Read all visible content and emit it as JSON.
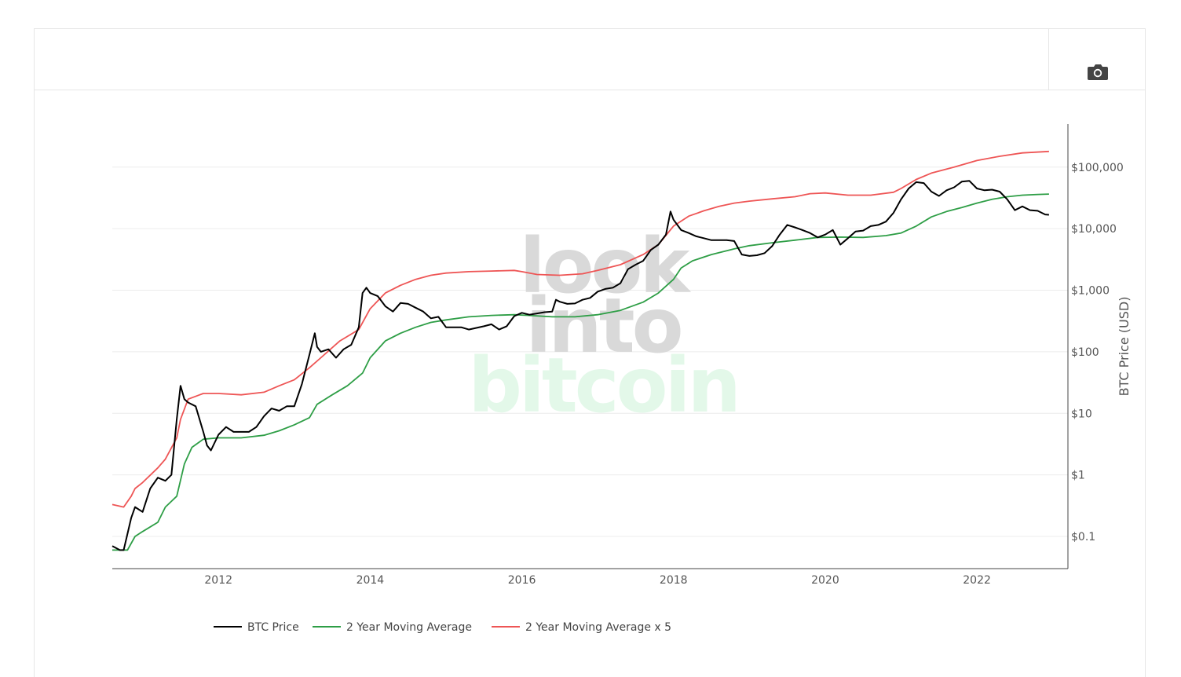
{
  "toolbar": {
    "camera_icon": "camera-icon"
  },
  "watermark": {
    "lines": [
      "look",
      "into",
      "bitcoin"
    ],
    "colors": [
      "#d9d9d9",
      "#d9d9d9",
      "#e3f8e9"
    ]
  },
  "chart_data": {
    "type": "line",
    "title": "",
    "xlabel": "",
    "ylabel": "BTC Price (USD)",
    "yscale": "log",
    "xlim": [
      2010.6,
      2023.2
    ],
    "ylim": [
      0.03,
      500000
    ],
    "grid": true,
    "legend_position": "bottom",
    "x_ticks": [
      2012,
      2014,
      2016,
      2018,
      2020,
      2022
    ],
    "x_tick_labels": [
      "2012",
      "2014",
      "2016",
      "2018",
      "2020",
      "2022"
    ],
    "y_ticks": [
      0.1,
      1,
      10,
      100,
      1000,
      10000,
      100000
    ],
    "y_tick_labels": [
      "$0.1",
      "$1",
      "$10",
      "$100",
      "$1,000",
      "$10,000",
      "$100,000"
    ],
    "series": [
      {
        "name": "BTC Price",
        "color": "#000000",
        "points": [
          [
            2010.6,
            0.07
          ],
          [
            2010.7,
            0.06
          ],
          [
            2010.75,
            0.06
          ],
          [
            2010.85,
            0.2
          ],
          [
            2010.9,
            0.3
          ],
          [
            2011.0,
            0.25
          ],
          [
            2011.1,
            0.6
          ],
          [
            2011.2,
            0.9
          ],
          [
            2011.3,
            0.8
          ],
          [
            2011.38,
            1.0
          ],
          [
            2011.45,
            8
          ],
          [
            2011.5,
            28
          ],
          [
            2011.55,
            17
          ],
          [
            2011.6,
            15
          ],
          [
            2011.7,
            13
          ],
          [
            2011.8,
            5
          ],
          [
            2011.85,
            3
          ],
          [
            2011.9,
            2.5
          ],
          [
            2012.0,
            4.5
          ],
          [
            2012.1,
            6
          ],
          [
            2012.2,
            5
          ],
          [
            2012.3,
            5
          ],
          [
            2012.4,
            5
          ],
          [
            2012.5,
            6
          ],
          [
            2012.6,
            9
          ],
          [
            2012.7,
            12
          ],
          [
            2012.8,
            11
          ],
          [
            2012.9,
            13
          ],
          [
            2013.0,
            13
          ],
          [
            2013.1,
            30
          ],
          [
            2013.2,
            90
          ],
          [
            2013.27,
            200
          ],
          [
            2013.3,
            120
          ],
          [
            2013.35,
            100
          ],
          [
            2013.45,
            110
          ],
          [
            2013.55,
            80
          ],
          [
            2013.65,
            110
          ],
          [
            2013.75,
            130
          ],
          [
            2013.85,
            250
          ],
          [
            2013.9,
            900
          ],
          [
            2013.95,
            1100
          ],
          [
            2014.0,
            900
          ],
          [
            2014.1,
            800
          ],
          [
            2014.2,
            550
          ],
          [
            2014.3,
            450
          ],
          [
            2014.4,
            620
          ],
          [
            2014.5,
            600
          ],
          [
            2014.6,
            520
          ],
          [
            2014.7,
            450
          ],
          [
            2014.8,
            350
          ],
          [
            2014.9,
            370
          ],
          [
            2015.0,
            250
          ],
          [
            2015.1,
            250
          ],
          [
            2015.2,
            250
          ],
          [
            2015.3,
            230
          ],
          [
            2015.5,
            260
          ],
          [
            2015.6,
            280
          ],
          [
            2015.7,
            230
          ],
          [
            2015.8,
            260
          ],
          [
            2015.9,
            380
          ],
          [
            2016.0,
            430
          ],
          [
            2016.1,
            400
          ],
          [
            2016.2,
            420
          ],
          [
            2016.3,
            440
          ],
          [
            2016.4,
            450
          ],
          [
            2016.45,
            700
          ],
          [
            2016.5,
            650
          ],
          [
            2016.6,
            600
          ],
          [
            2016.7,
            610
          ],
          [
            2016.8,
            700
          ],
          [
            2016.9,
            750
          ],
          [
            2017.0,
            950
          ],
          [
            2017.1,
            1050
          ],
          [
            2017.2,
            1100
          ],
          [
            2017.3,
            1300
          ],
          [
            2017.4,
            2200
          ],
          [
            2017.5,
            2600
          ],
          [
            2017.6,
            3000
          ],
          [
            2017.7,
            4500
          ],
          [
            2017.8,
            5500
          ],
          [
            2017.9,
            8000
          ],
          [
            2017.96,
            19000
          ],
          [
            2018.0,
            14000
          ],
          [
            2018.1,
            9500
          ],
          [
            2018.2,
            8500
          ],
          [
            2018.3,
            7500
          ],
          [
            2018.4,
            7000
          ],
          [
            2018.5,
            6500
          ],
          [
            2018.6,
            6500
          ],
          [
            2018.7,
            6500
          ],
          [
            2018.8,
            6300
          ],
          [
            2018.9,
            3800
          ],
          [
            2019.0,
            3600
          ],
          [
            2019.1,
            3700
          ],
          [
            2019.2,
            4000
          ],
          [
            2019.3,
            5200
          ],
          [
            2019.4,
            8000
          ],
          [
            2019.5,
            11500
          ],
          [
            2019.6,
            10500
          ],
          [
            2019.7,
            9500
          ],
          [
            2019.8,
            8500
          ],
          [
            2019.9,
            7200
          ],
          [
            2020.0,
            8000
          ],
          [
            2020.1,
            9500
          ],
          [
            2020.2,
            5500
          ],
          [
            2020.3,
            7000
          ],
          [
            2020.4,
            9000
          ],
          [
            2020.5,
            9300
          ],
          [
            2020.6,
            11000
          ],
          [
            2020.7,
            11500
          ],
          [
            2020.8,
            13000
          ],
          [
            2020.9,
            18000
          ],
          [
            2021.0,
            30000
          ],
          [
            2021.1,
            45000
          ],
          [
            2021.2,
            57000
          ],
          [
            2021.3,
            55000
          ],
          [
            2021.4,
            40000
          ],
          [
            2021.5,
            34000
          ],
          [
            2021.6,
            42000
          ],
          [
            2021.7,
            47000
          ],
          [
            2021.8,
            58000
          ],
          [
            2021.9,
            60000
          ],
          [
            2022.0,
            45000
          ],
          [
            2022.1,
            42000
          ],
          [
            2022.2,
            43000
          ],
          [
            2022.3,
            40000
          ],
          [
            2022.4,
            30000
          ],
          [
            2022.5,
            20000
          ],
          [
            2022.6,
            23000
          ],
          [
            2022.7,
            20000
          ],
          [
            2022.8,
            19500
          ],
          [
            2022.9,
            17000
          ],
          [
            2022.95,
            16800
          ]
        ]
      },
      {
        "name": "2 Year Moving Average",
        "color": "#2e9e46",
        "points": [
          [
            2010.6,
            0.06
          ],
          [
            2010.8,
            0.06
          ],
          [
            2010.9,
            0.1
          ],
          [
            2011.0,
            0.12
          ],
          [
            2011.2,
            0.17
          ],
          [
            2011.3,
            0.3
          ],
          [
            2011.45,
            0.45
          ],
          [
            2011.55,
            1.5
          ],
          [
            2011.65,
            2.8
          ],
          [
            2011.8,
            3.8
          ],
          [
            2012.0,
            4.0
          ],
          [
            2012.3,
            4.0
          ],
          [
            2012.6,
            4.4
          ],
          [
            2012.8,
            5.2
          ],
          [
            2013.0,
            6.5
          ],
          [
            2013.2,
            8.5
          ],
          [
            2013.3,
            14
          ],
          [
            2013.5,
            20
          ],
          [
            2013.7,
            28
          ],
          [
            2013.9,
            45
          ],
          [
            2014.0,
            80
          ],
          [
            2014.2,
            150
          ],
          [
            2014.4,
            200
          ],
          [
            2014.6,
            250
          ],
          [
            2014.8,
            300
          ],
          [
            2015.0,
            330
          ],
          [
            2015.3,
            370
          ],
          [
            2015.6,
            390
          ],
          [
            2015.9,
            400
          ],
          [
            2016.1,
            390
          ],
          [
            2016.4,
            370
          ],
          [
            2016.7,
            370
          ],
          [
            2017.0,
            400
          ],
          [
            2017.3,
            470
          ],
          [
            2017.6,
            640
          ],
          [
            2017.8,
            900
          ],
          [
            2018.0,
            1500
          ],
          [
            2018.1,
            2300
          ],
          [
            2018.25,
            3000
          ],
          [
            2018.5,
            3800
          ],
          [
            2018.8,
            4700
          ],
          [
            2019.0,
            5300
          ],
          [
            2019.3,
            5900
          ],
          [
            2019.6,
            6500
          ],
          [
            2019.9,
            7200
          ],
          [
            2020.2,
            7300
          ],
          [
            2020.5,
            7200
          ],
          [
            2020.8,
            7700
          ],
          [
            2021.0,
            8500
          ],
          [
            2021.2,
            11000
          ],
          [
            2021.4,
            15500
          ],
          [
            2021.6,
            19000
          ],
          [
            2021.8,
            22000
          ],
          [
            2022.0,
            26000
          ],
          [
            2022.2,
            30000
          ],
          [
            2022.4,
            33000
          ],
          [
            2022.6,
            35000
          ],
          [
            2022.8,
            36000
          ],
          [
            2022.95,
            36500
          ]
        ]
      },
      {
        "name": "2 Year Moving Average x 5",
        "color": "#ee5555",
        "points": [
          [
            2010.6,
            0.33
          ],
          [
            2010.75,
            0.3
          ],
          [
            2010.85,
            0.45
          ],
          [
            2010.9,
            0.6
          ],
          [
            2011.0,
            0.75
          ],
          [
            2011.2,
            1.3
          ],
          [
            2011.3,
            1.8
          ],
          [
            2011.45,
            4
          ],
          [
            2011.5,
            8
          ],
          [
            2011.6,
            17
          ],
          [
            2011.8,
            21
          ],
          [
            2012.0,
            21
          ],
          [
            2012.3,
            20
          ],
          [
            2012.6,
            22
          ],
          [
            2012.8,
            28
          ],
          [
            2013.0,
            35
          ],
          [
            2013.2,
            55
          ],
          [
            2013.35,
            80
          ],
          [
            2013.6,
            150
          ],
          [
            2013.85,
            230
          ],
          [
            2014.0,
            500
          ],
          [
            2014.2,
            900
          ],
          [
            2014.4,
            1200
          ],
          [
            2014.6,
            1500
          ],
          [
            2014.8,
            1750
          ],
          [
            2015.0,
            1900
          ],
          [
            2015.3,
            2000
          ],
          [
            2015.6,
            2050
          ],
          [
            2015.9,
            2100
          ],
          [
            2016.0,
            2000
          ],
          [
            2016.2,
            1800
          ],
          [
            2016.5,
            1750
          ],
          [
            2016.8,
            1850
          ],
          [
            2017.0,
            2100
          ],
          [
            2017.3,
            2600
          ],
          [
            2017.6,
            3800
          ],
          [
            2017.8,
            5500
          ],
          [
            2018.0,
            11000
          ],
          [
            2018.2,
            16000
          ],
          [
            2018.4,
            19500
          ],
          [
            2018.6,
            23000
          ],
          [
            2018.8,
            26000
          ],
          [
            2019.0,
            28000
          ],
          [
            2019.3,
            30500
          ],
          [
            2019.6,
            33000
          ],
          [
            2019.8,
            37000
          ],
          [
            2020.0,
            38000
          ],
          [
            2020.3,
            35000
          ],
          [
            2020.6,
            35000
          ],
          [
            2020.9,
            39000
          ],
          [
            2021.0,
            45000
          ],
          [
            2021.2,
            63000
          ],
          [
            2021.4,
            80000
          ],
          [
            2021.7,
            100000
          ],
          [
            2022.0,
            128000
          ],
          [
            2022.3,
            150000
          ],
          [
            2022.6,
            170000
          ],
          [
            2022.95,
            180000
          ]
        ]
      }
    ]
  }
}
